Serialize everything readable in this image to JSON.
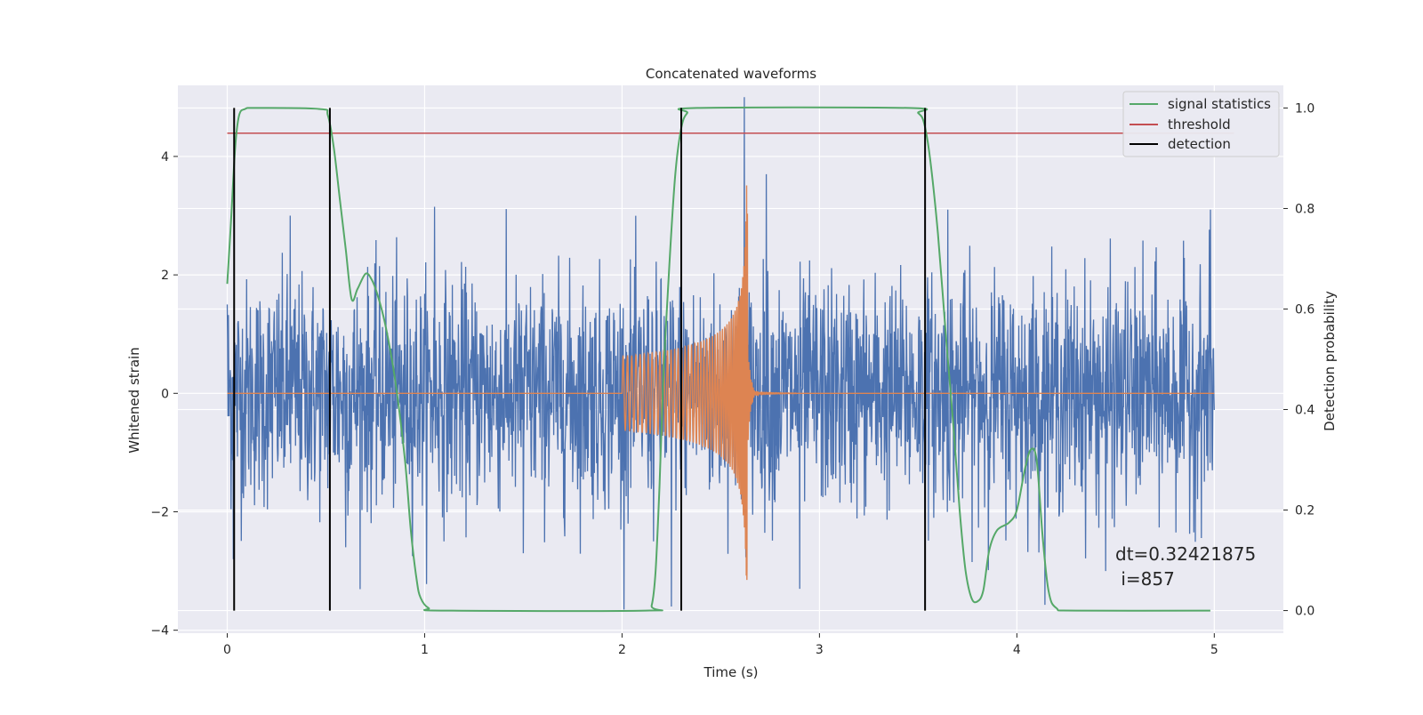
{
  "chart_data": {
    "type": "line",
    "title": "Concatenated waveforms",
    "xlabel": "Time (s)",
    "ylabel_left": "Whitened strain",
    "ylabel_right": "Detection probability",
    "xlim": [
      -0.25,
      5.35
    ],
    "ylim_left": [
      -4.05,
      5.2
    ],
    "ylim_right": [
      -0.045,
      1.045
    ],
    "x_ticks": [
      0,
      1,
      2,
      3,
      4,
      5
    ],
    "y_ticks_left": [
      -4,
      -2,
      0,
      2,
      4
    ],
    "y_ticks_right": [
      0.0,
      0.2,
      0.4,
      0.6,
      0.8,
      1.0
    ],
    "x_tick_labels": [
      "0",
      "1",
      "2",
      "3",
      "4",
      "5"
    ],
    "y_tick_labels_left": [
      "−4",
      "−2",
      "0",
      "2",
      "4"
    ],
    "y_tick_labels_right": [
      "0.0",
      "0.2",
      "0.4",
      "0.6",
      "0.8",
      "1.0"
    ],
    "grid": true,
    "legend_position": "top-right",
    "background": "#eaeaf2",
    "series": [
      {
        "key": "strain",
        "axis": "left",
        "color": "#4c72b0",
        "kind": "noise",
        "x_range": [
          0,
          5
        ],
        "y_range": [
          -3.65,
          5.0
        ],
        "description_points": [
          [
            0.0,
            1.5
          ],
          [
            0.03,
            -2.8
          ],
          [
            0.32,
            3.0
          ],
          [
            0.6,
            -2.6
          ],
          [
            1.05,
            3.15
          ],
          [
            1.5,
            -2.7
          ],
          [
            2.16,
            -2.5
          ],
          [
            2.25,
            -3.6
          ],
          [
            2.62,
            5.0
          ],
          [
            2.73,
            3.7
          ],
          [
            2.9,
            -3.3
          ],
          [
            3.65,
            3.1
          ],
          [
            4.45,
            -3.0
          ],
          [
            4.98,
            3.1
          ]
        ]
      },
      {
        "key": "template",
        "axis": "left",
        "color": "#dd8452",
        "kind": "chirp",
        "x_range": [
          0,
          5
        ],
        "chirp_start": 2.0,
        "chirp_end": 2.635,
        "start_amplitude": 0.62,
        "peak_max": 3.55,
        "peak_min": -3.15
      },
      {
        "key": "signal_statistics",
        "name": "signal statistics",
        "axis": "right",
        "color": "#55a868",
        "points": [
          [
            0.0,
            0.65
          ],
          [
            0.02,
            0.78
          ],
          [
            0.04,
            0.92
          ],
          [
            0.06,
            0.985
          ],
          [
            0.09,
            0.998
          ],
          [
            0.15,
            1.0
          ],
          [
            0.47,
            0.998
          ],
          [
            0.51,
            0.985
          ],
          [
            0.54,
            0.92
          ],
          [
            0.57,
            0.82
          ],
          [
            0.6,
            0.72
          ],
          [
            0.63,
            0.62
          ],
          [
            0.66,
            0.64
          ],
          [
            0.7,
            0.67
          ],
          [
            0.73,
            0.66
          ],
          [
            0.76,
            0.63
          ],
          [
            0.8,
            0.57
          ],
          [
            0.85,
            0.46
          ],
          [
            0.9,
            0.3
          ],
          [
            0.93,
            0.16
          ],
          [
            0.96,
            0.06
          ],
          [
            0.98,
            0.025
          ],
          [
            1.02,
            0.005
          ],
          [
            1.1,
            0.0
          ],
          [
            2.12,
            0.0
          ],
          [
            2.15,
            0.01
          ],
          [
            2.17,
            0.08
          ],
          [
            2.19,
            0.25
          ],
          [
            2.21,
            0.47
          ],
          [
            2.24,
            0.69
          ],
          [
            2.27,
            0.87
          ],
          [
            2.3,
            0.96
          ],
          [
            2.33,
            0.99
          ],
          [
            2.38,
            1.0
          ],
          [
            3.45,
            1.0
          ],
          [
            3.5,
            0.99
          ],
          [
            3.53,
            0.97
          ],
          [
            3.56,
            0.9
          ],
          [
            3.6,
            0.75
          ],
          [
            3.64,
            0.55
          ],
          [
            3.68,
            0.36
          ],
          [
            3.71,
            0.2
          ],
          [
            3.74,
            0.08
          ],
          [
            3.77,
            0.025
          ],
          [
            3.8,
            0.018
          ],
          [
            3.83,
            0.04
          ],
          [
            3.86,
            0.12
          ],
          [
            3.9,
            0.16
          ],
          [
            3.96,
            0.175
          ],
          [
            4.0,
            0.2
          ],
          [
            4.04,
            0.28
          ],
          [
            4.07,
            0.32
          ],
          [
            4.1,
            0.3
          ],
          [
            4.13,
            0.15
          ],
          [
            4.16,
            0.04
          ],
          [
            4.2,
            0.005
          ],
          [
            4.3,
            0.0
          ],
          [
            4.98,
            0.0
          ]
        ]
      },
      {
        "key": "threshold",
        "name": "threshold",
        "axis": "right",
        "color": "#c44e52",
        "points": [
          [
            0.0,
            0.95
          ],
          [
            5.1,
            0.95
          ]
        ]
      },
      {
        "key": "detection",
        "name": "detection",
        "axis": "right",
        "color": "#000000",
        "kind": "vlines",
        "x": [
          0.035,
          0.52,
          2.3,
          3.535
        ],
        "ymin": 0.0,
        "ymax": 1.0
      }
    ],
    "annotation_line1": "dt=0.32421875",
    "annotation_line2": " i=857",
    "annotation_position": [
      4.5,
      0.115
    ]
  },
  "legend": {
    "signal_statistics": "signal statistics",
    "threshold": "threshold",
    "detection": "detection"
  }
}
